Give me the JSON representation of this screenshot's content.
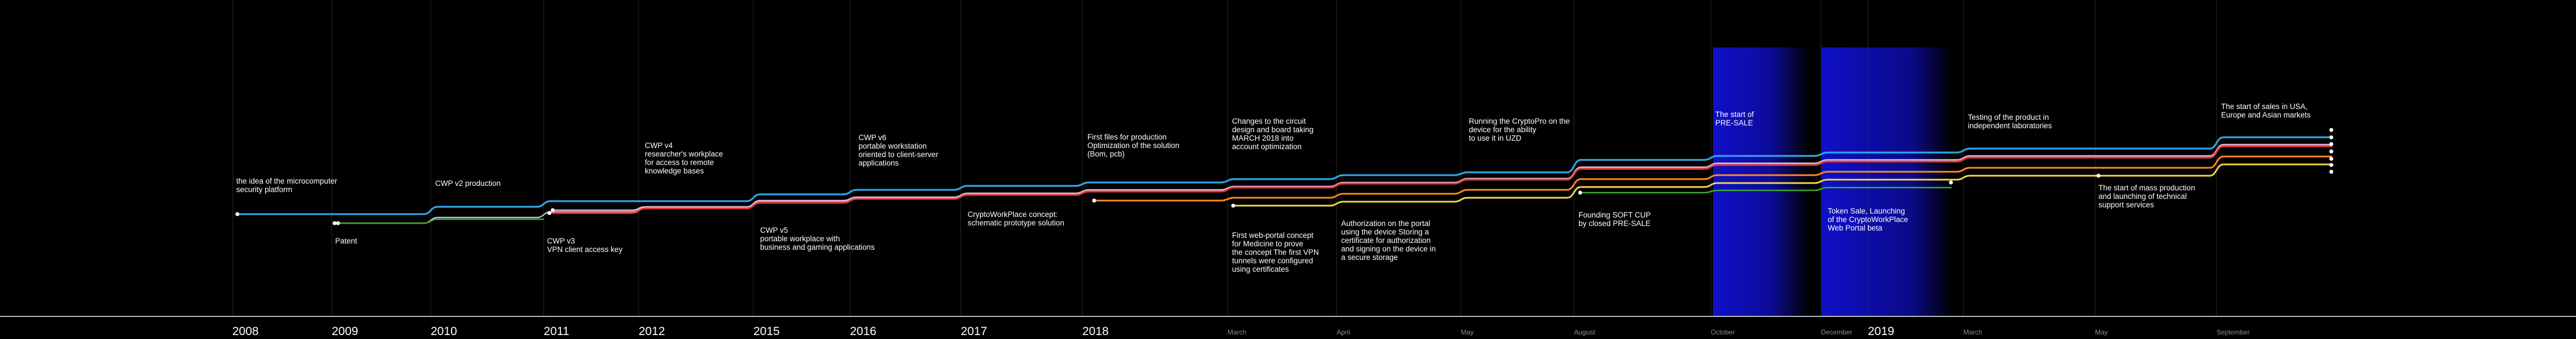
{
  "colors": {
    "background": "#000000",
    "text": "#ffffff",
    "month_text": "#8c8c8c",
    "gridline": "#2a2a2a",
    "baseline": "#bbbbbb",
    "band": "#1010c8",
    "lines": [
      "#2fa6e6",
      "#b7bcc7",
      "#e6b3d3",
      "#e23a3a",
      "#ff8a1e",
      "#f2d64a",
      "#3fa83a"
    ]
  },
  "years": [
    "2008",
    "2009",
    "2010",
    "2011",
    "2012",
    "2015",
    "2016",
    "2017",
    "2018",
    "2019"
  ],
  "months": [
    "March",
    "April",
    "May",
    "August",
    "October",
    "December",
    "March",
    "May",
    "September"
  ],
  "events_above": [
    "the idea of the microcomputer\nsecurity platform",
    "CWP v2  production",
    "CWP v4\nresearcher's workplace\nfor access to remote\nknowledge bases",
    "CWP v6\nportable workstation\noriented to client-server\napplications",
    "First files for production\nOptimization of the solution\n(Bom, pcb)",
    "Changes to the circuit\ndesign and board taking\nMARCH 2018 into\naccount optimization",
    "Running the CryptoPro on the\ndevice for the ability\nto use it in UZD",
    "The start of\nPRE-SALE",
    "Testing of the product in\nindependent laboratories",
    "The start of sales in USA,\nEurope and Asian markets"
  ],
  "events_below": [
    "Patent",
    "CWP v3\nVPN client access key",
    "CWP v5\nportable workplace with\nbusiness and gaming applications",
    "CryptoWorkPlace concept:\nschematic prototype solution",
    "First web-portal concept\nfor Medicine to prove\nthe concept The first VPN\ntunnels were configured\nusing certificates",
    "Authorization on the portal\nusing the device Storing a\ncertificate for authorization\nand signing on the device in\na secure storage",
    "Founding SOFT CUP\nby closed PRE-SALE",
    "Token Sale, Launching\nof the CryptoWorkPlace\nWeb Portal beta",
    "The start of mass production\nand launching of technical\nsupport services"
  ]
}
